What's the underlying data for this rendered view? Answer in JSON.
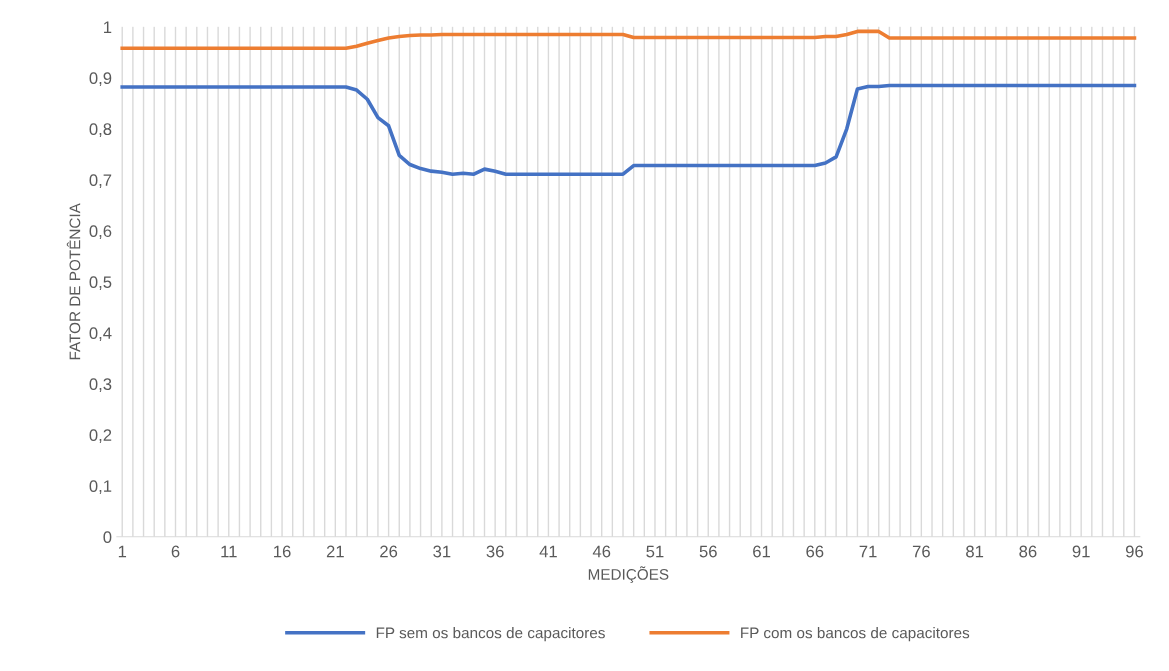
{
  "chart_data": {
    "type": "line",
    "xlabel": "MEDIÇÕES",
    "ylabel": "FATOR DE POTÊNCIA",
    "categories": [
      "1",
      null,
      null,
      null,
      null,
      "6",
      null,
      null,
      null,
      null,
      "11",
      null,
      null,
      null,
      null,
      "16",
      null,
      null,
      null,
      null,
      "21",
      null,
      null,
      null,
      null,
      "26",
      null,
      null,
      null,
      null,
      "31",
      null,
      null,
      null,
      null,
      "36",
      null,
      null,
      null,
      null,
      "41",
      null,
      null,
      null,
      null,
      "46",
      null,
      null,
      null,
      null,
      "51",
      null,
      null,
      null,
      null,
      "56",
      null,
      null,
      null,
      null,
      "61",
      null,
      null,
      null,
      null,
      "66",
      null,
      null,
      null,
      null,
      "71",
      null,
      null,
      null,
      null,
      "76",
      null,
      null,
      null,
      null,
      "81",
      null,
      null,
      null,
      null,
      "86",
      null,
      null,
      null,
      null,
      "91",
      null,
      null,
      null,
      null,
      "96"
    ],
    "series": [
      {
        "name": "FP sem os bancos de capacitores",
        "color": "#4472c4",
        "values": [
          0.882,
          0.882,
          0.882,
          0.882,
          0.882,
          0.882,
          0.882,
          0.882,
          0.882,
          0.882,
          0.882,
          0.882,
          0.882,
          0.882,
          0.882,
          0.882,
          0.882,
          0.882,
          0.882,
          0.882,
          0.882,
          0.882,
          0.876,
          0.858,
          0.822,
          0.806,
          0.748,
          0.73,
          0.722,
          0.717,
          0.715,
          0.711,
          0.713,
          0.711,
          0.721,
          0.717,
          0.711,
          0.711,
          0.711,
          0.711,
          0.711,
          0.711,
          0.711,
          0.711,
          0.711,
          0.711,
          0.711,
          0.711,
          0.728,
          0.728,
          0.728,
          0.728,
          0.728,
          0.728,
          0.728,
          0.728,
          0.728,
          0.728,
          0.728,
          0.728,
          0.728,
          0.728,
          0.728,
          0.728,
          0.728,
          0.728,
          0.733,
          0.745,
          0.8,
          0.878,
          0.883,
          0.883,
          0.885,
          0.885,
          0.885,
          0.885,
          0.885,
          0.885,
          0.885,
          0.885,
          0.885,
          0.885,
          0.885,
          0.885,
          0.885,
          0.885,
          0.885,
          0.885,
          0.885,
          0.885,
          0.885,
          0.885,
          0.885,
          0.885,
          0.885,
          0.885
        ]
      },
      {
        "name": "FP com os bancos de capacitores",
        "color": "#ed7d31",
        "values": [
          0.958,
          0.958,
          0.958,
          0.958,
          0.958,
          0.958,
          0.958,
          0.958,
          0.958,
          0.958,
          0.958,
          0.958,
          0.958,
          0.958,
          0.958,
          0.958,
          0.958,
          0.958,
          0.958,
          0.958,
          0.958,
          0.958,
          0.962,
          0.968,
          0.973,
          0.978,
          0.981,
          0.983,
          0.984,
          0.984,
          0.985,
          0.985,
          0.985,
          0.985,
          0.985,
          0.985,
          0.985,
          0.985,
          0.985,
          0.985,
          0.985,
          0.985,
          0.985,
          0.985,
          0.985,
          0.985,
          0.985,
          0.985,
          0.979,
          0.979,
          0.979,
          0.979,
          0.979,
          0.979,
          0.979,
          0.979,
          0.979,
          0.979,
          0.979,
          0.979,
          0.979,
          0.979,
          0.979,
          0.979,
          0.979,
          0.979,
          0.981,
          0.981,
          0.985,
          0.991,
          0.991,
          0.991,
          0.978,
          0.978,
          0.978,
          0.978,
          0.978,
          0.978,
          0.978,
          0.978,
          0.978,
          0.978,
          0.978,
          0.978,
          0.978,
          0.978,
          0.978,
          0.978,
          0.978,
          0.978,
          0.978,
          0.978,
          0.978,
          0.978,
          0.978,
          0.978
        ]
      }
    ],
    "ylim": [
      0,
      1
    ],
    "yticks": [
      0,
      {
        "value": 0.1,
        "label": "0,1"
      },
      {
        "value": 0.2,
        "label": "0,2"
      },
      {
        "value": 0.3,
        "label": "0,3"
      },
      {
        "value": 0.4,
        "label": "0,4"
      },
      {
        "value": 0.5,
        "label": "0,5"
      },
      {
        "value": 0.6,
        "label": "0,6"
      },
      {
        "value": 0.7,
        "label": "0,7"
      },
      {
        "value": 0.8,
        "label": "0,8"
      },
      {
        "value": 0.9,
        "label": "0,9"
      },
      1
    ],
    "grid": "x",
    "legend": "bottom",
    "marker": "none",
    "line_style": "solid"
  }
}
